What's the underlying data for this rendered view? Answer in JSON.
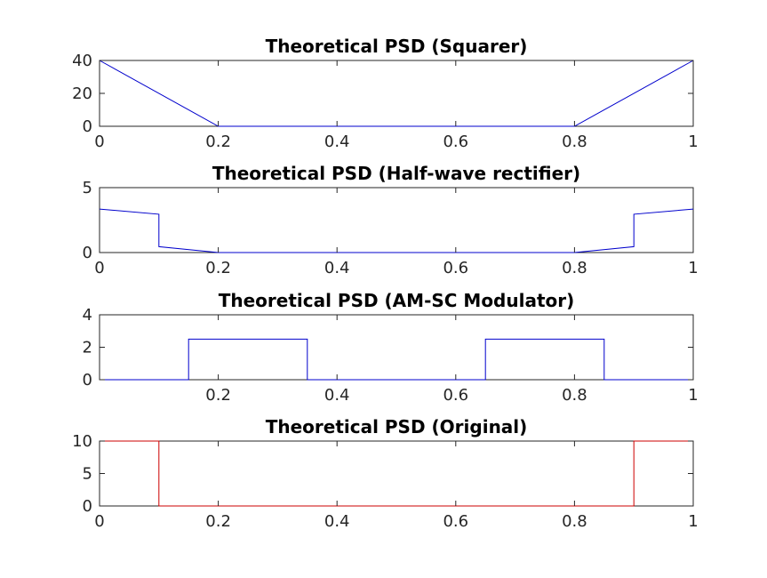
{
  "chart_data": [
    {
      "type": "line",
      "title": "Theoretical PSD (Squarer)",
      "xlim": [
        0,
        1
      ],
      "ylim": [
        0,
        40
      ],
      "xticks": [
        0,
        0.2,
        0.4,
        0.6,
        0.8,
        1
      ],
      "xtick_labels": [
        "0",
        "0.2",
        "0.4",
        "0.6",
        "0.8",
        "1"
      ],
      "yticks": [
        0,
        20,
        40
      ],
      "ytick_labels": [
        "0",
        "20",
        "40"
      ],
      "grid": false,
      "series": [
        {
          "color": "#0000cc",
          "x": [
            0,
            0.2,
            0.8,
            1
          ],
          "y": [
            40,
            0,
            0,
            40
          ]
        }
      ]
    },
    {
      "type": "line",
      "title": "Theoretical PSD (Half-wave rectifier)",
      "xlim": [
        0,
        1
      ],
      "ylim": [
        0,
        5
      ],
      "xticks": [
        0,
        0.2,
        0.4,
        0.6,
        0.8,
        1
      ],
      "xtick_labels": [
        "0",
        "0.2",
        "0.4",
        "0.6",
        "0.8",
        "1"
      ],
      "yticks": [
        0,
        5
      ],
      "ytick_labels": [
        "0",
        "5"
      ],
      "grid": false,
      "series": [
        {
          "color": "#0000cc",
          "x": [
            0,
            0.1,
            0.1,
            0.2,
            0.8,
            0.9,
            0.9,
            1
          ],
          "y": [
            3.35,
            2.95,
            0.45,
            0,
            0,
            0.45,
            2.95,
            3.35
          ]
        }
      ]
    },
    {
      "type": "line",
      "title": "Theoretical PSD (AM-SC Modulator)",
      "xlim": [
        0,
        1
      ],
      "ylim": [
        0,
        4
      ],
      "xticks": [
        0.2,
        0.4,
        0.6,
        0.8,
        1
      ],
      "xtick_labels": [
        "0.2",
        "0.4",
        "0.6",
        "0.8",
        "1"
      ],
      "yticks": [
        0,
        2,
        4
      ],
      "ytick_labels": [
        "0",
        "2",
        "4"
      ],
      "grid": false,
      "series": [
        {
          "color": "#0000cc",
          "x": [
            0,
            0.15,
            0.15,
            0.35,
            0.35,
            0.65,
            0.65,
            0.85,
            0.85,
            1
          ],
          "y": [
            0,
            0,
            2.5,
            2.5,
            0,
            0,
            2.5,
            2.5,
            0,
            0
          ]
        }
      ]
    },
    {
      "type": "line",
      "title": "Theoretical PSD (Original)",
      "xlim": [
        0,
        1
      ],
      "ylim": [
        0,
        10
      ],
      "xticks": [
        0,
        0.2,
        0.4,
        0.6,
        0.8,
        1
      ],
      "xtick_labels": [
        "0",
        "0.2",
        "0.4",
        "0.6",
        "0.8",
        "1"
      ],
      "yticks": [
        0,
        5,
        10
      ],
      "ytick_labels": [
        "0",
        "5",
        "10"
      ],
      "grid": false,
      "series": [
        {
          "color": "#cc0000",
          "x": [
            0,
            0.1,
            0.1,
            0.9,
            0.9,
            1
          ],
          "y": [
            10,
            10,
            0,
            0,
            10,
            10
          ]
        }
      ]
    }
  ]
}
